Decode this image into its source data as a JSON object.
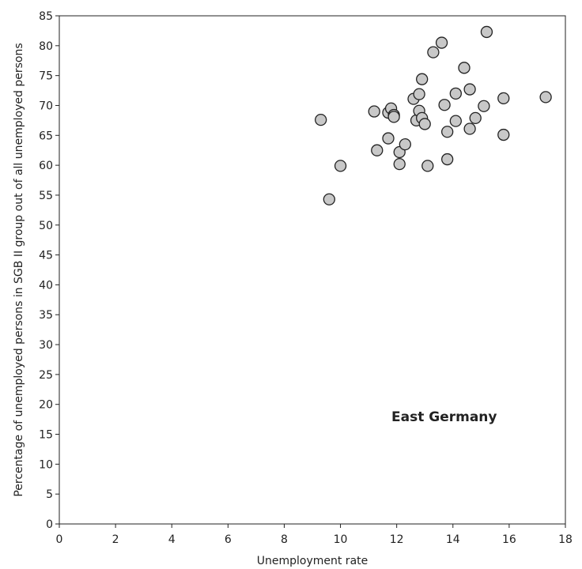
{
  "chart_data": {
    "type": "scatter",
    "title": "",
    "xlabel": "Unemployment rate",
    "ylabel": "Percentage of unemployed persons in SGB II group out of all unemployed persons",
    "xlim": [
      0,
      18
    ],
    "ylim": [
      0,
      85
    ],
    "x_ticks": [
      "0",
      "2",
      "4",
      "6",
      "8",
      "10",
      "12",
      "14",
      "16",
      "18"
    ],
    "y_ticks": [
      "0",
      "5",
      "10",
      "15",
      "20",
      "25",
      "30",
      "35",
      "40",
      "45",
      "50",
      "55",
      "60",
      "65",
      "70",
      "75",
      "80",
      "85"
    ],
    "grid": false,
    "legend": "none",
    "annotation": "East Germany",
    "marker_fill": "#c8c8c8",
    "marker_stroke": "#222222",
    "points": [
      {
        "x": 9.3,
        "y": 67.6
      },
      {
        "x": 9.6,
        "y": 54.3
      },
      {
        "x": 10.0,
        "y": 59.9
      },
      {
        "x": 11.2,
        "y": 69.0
      },
      {
        "x": 11.3,
        "y": 62.5
      },
      {
        "x": 11.7,
        "y": 68.8
      },
      {
        "x": 11.7,
        "y": 64.5
      },
      {
        "x": 11.8,
        "y": 69.5
      },
      {
        "x": 11.9,
        "y": 68.4
      },
      {
        "x": 11.9,
        "y": 68.1
      },
      {
        "x": 12.1,
        "y": 62.2
      },
      {
        "x": 12.1,
        "y": 60.2
      },
      {
        "x": 12.3,
        "y": 63.5
      },
      {
        "x": 12.6,
        "y": 71.1
      },
      {
        "x": 12.7,
        "y": 67.5
      },
      {
        "x": 12.8,
        "y": 71.9
      },
      {
        "x": 12.8,
        "y": 69.1
      },
      {
        "x": 12.9,
        "y": 74.4
      },
      {
        "x": 12.9,
        "y": 67.9
      },
      {
        "x": 13.0,
        "y": 66.9
      },
      {
        "x": 13.1,
        "y": 59.9
      },
      {
        "x": 13.3,
        "y": 78.9
      },
      {
        "x": 13.6,
        "y": 80.5
      },
      {
        "x": 13.7,
        "y": 70.1
      },
      {
        "x": 13.8,
        "y": 65.6
      },
      {
        "x": 13.8,
        "y": 61.0
      },
      {
        "x": 14.1,
        "y": 72.0
      },
      {
        "x": 14.1,
        "y": 67.4
      },
      {
        "x": 14.4,
        "y": 76.3
      },
      {
        "x": 14.6,
        "y": 72.7
      },
      {
        "x": 14.6,
        "y": 66.1
      },
      {
        "x": 14.8,
        "y": 67.9
      },
      {
        "x": 15.1,
        "y": 69.9
      },
      {
        "x": 15.2,
        "y": 82.3
      },
      {
        "x": 15.8,
        "y": 71.2
      },
      {
        "x": 15.8,
        "y": 65.1
      },
      {
        "x": 17.3,
        "y": 71.4
      }
    ]
  }
}
